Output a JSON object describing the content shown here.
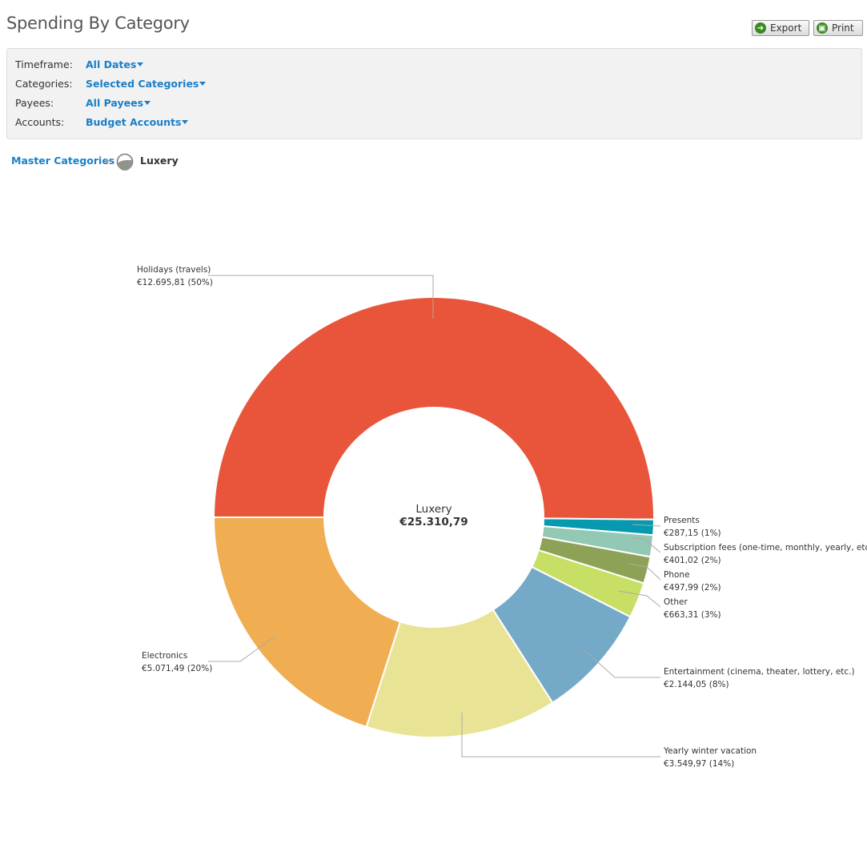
{
  "header": {
    "title": "Spending By Category",
    "export_label": "Export",
    "print_label": "Print"
  },
  "filters": [
    {
      "label": "Timeframe:",
      "value": "All Dates"
    },
    {
      "label": "Categories:",
      "value": "Selected Categories"
    },
    {
      "label": "Payees:",
      "value": "All Payees"
    },
    {
      "label": "Accounts:",
      "value": "Budget Accounts"
    }
  ],
  "breadcrumb": {
    "root": "Master Categories",
    "current": "Luxery"
  },
  "chart_data": {
    "type": "pie",
    "variant": "donut",
    "center_label": "Luxery",
    "center_total": "€25.310,79",
    "slices": [
      {
        "name": "Holidays (travels)",
        "value": 12695.81,
        "value_label": "€12.695,81 (50%)",
        "percent": 50,
        "color": "#e8553a"
      },
      {
        "name": "Presents",
        "value": 287.15,
        "value_label": "€287,15 (1%)",
        "percent": 1,
        "color": "#0699b0"
      },
      {
        "name": "Subscription fees (one-time, monthly, yearly, etc.)",
        "value": 401.02,
        "value_label": "€401,02 (2%)",
        "percent": 2,
        "color": "#93c8b4"
      },
      {
        "name": "Phone",
        "value": 497.99,
        "value_label": "€497,99 (2%)",
        "percent": 2,
        "color": "#8da257"
      },
      {
        "name": "Other",
        "value": 663.31,
        "value_label": "€663,31 (3%)",
        "percent": 3,
        "color": "#c8df66"
      },
      {
        "name": "Entertainment (cinema, theater, lottery, etc.)",
        "value": 2144.05,
        "value_label": "€2.144,05 (8%)",
        "percent": 8,
        "color": "#74a9c8"
      },
      {
        "name": "Yearly winter vacation",
        "value": 3549.97,
        "value_label": "€3.549,97 (14%)",
        "percent": 14,
        "color": "#e9e495"
      },
      {
        "name": "Electronics",
        "value": 5071.49,
        "value_label": "€5.071,49 (20%)",
        "percent": 20,
        "color": "#f0ad52"
      }
    ]
  }
}
